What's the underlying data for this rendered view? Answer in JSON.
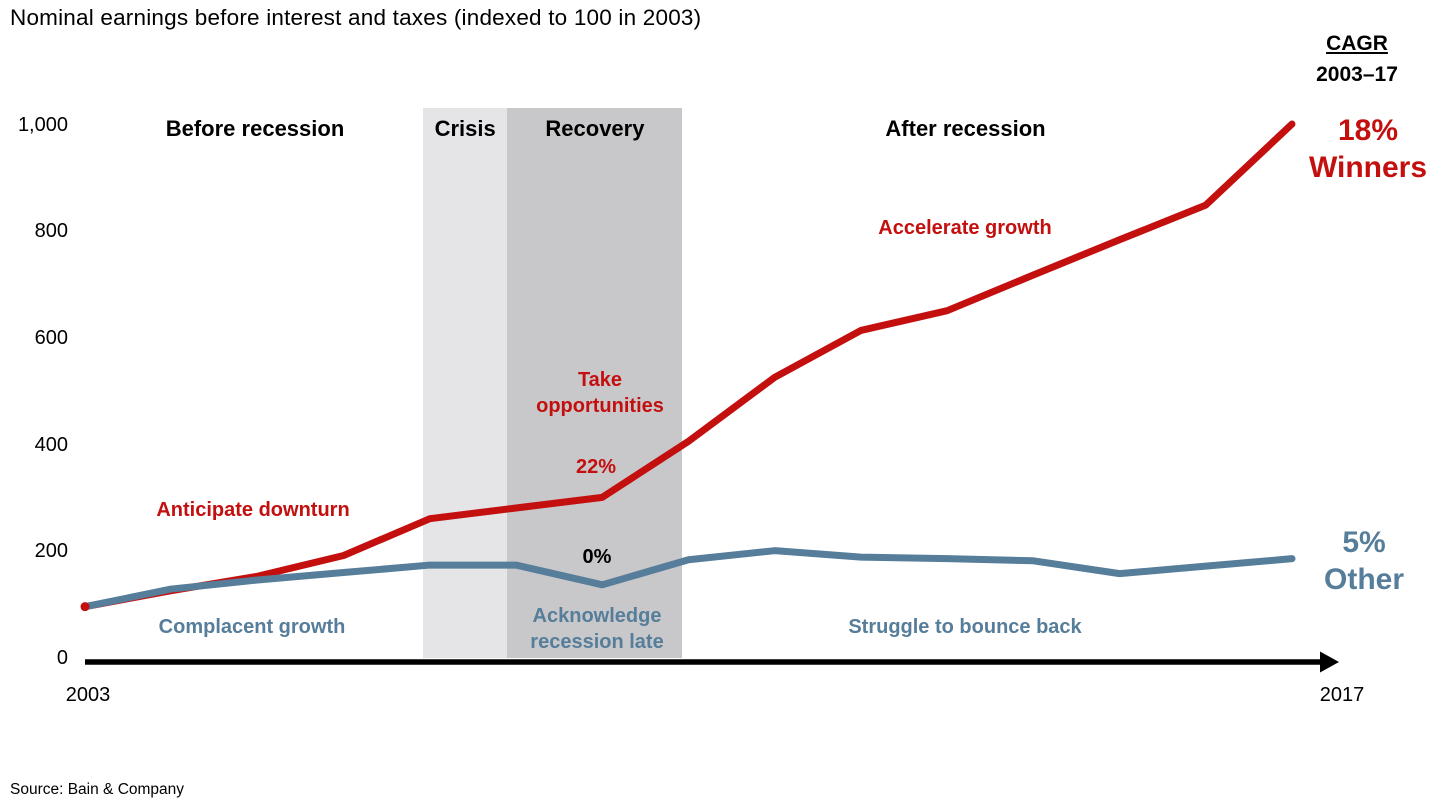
{
  "title": "Nominal earnings before interest and taxes (indexed to 100 in 2003)",
  "source": "Source: Bain & Company",
  "cagr_header": {
    "heading": "CAGR",
    "subheading": "2003–17"
  },
  "series_callouts": {
    "winners": "18%\nWinners",
    "other": "5%\nOther"
  },
  "phases": {
    "before": "Before recession",
    "after": "After recession"
  },
  "axis": {
    "x_start_label": "2003",
    "x_end_label": "2017",
    "y_tick_labels": [
      "1,000",
      "800",
      "600",
      "400",
      "200",
      "0"
    ]
  },
  "chart_data": {
    "type": "line",
    "title": "Nominal earnings before interest and taxes (indexed to 100 in 2003)",
    "x": [
      2003,
      2004,
      2005,
      2006,
      2007,
      2008,
      2009,
      2010,
      2011,
      2012,
      2013,
      2014,
      2015,
      2016,
      2017
    ],
    "series": [
      {
        "name": "Winners",
        "cagr_2003_17": "18%",
        "color": "#c40f0f",
        "values": [
          100,
          130,
          157,
          196,
          265,
          285,
          305,
          410,
          530,
          618,
          655,
          722,
          788,
          853,
          1005
        ]
      },
      {
        "name": "Other",
        "cagr_2003_17": "5%",
        "color": "#567d99",
        "values": [
          100,
          133,
          150,
          164,
          178,
          178,
          141,
          188,
          205,
          193,
          190,
          186,
          162,
          176,
          190
        ]
      }
    ],
    "ylim": [
      0,
      1000
    ],
    "yticks": [
      1000,
      800,
      600,
      400,
      200,
      0
    ],
    "grid": false,
    "legend_position": "right-of-line-ends",
    "bands": [
      {
        "label": "Crisis",
        "x_from": 2006.92,
        "x_to": 2007.9,
        "color": "#e5e5e7"
      },
      {
        "label": "Recovery",
        "x_from": 2007.9,
        "x_to": 2009.93,
        "color": "#c8c8ca"
      }
    ],
    "annotations": [
      {
        "text": "Anticipate downturn",
        "color": "#c40f0f",
        "series": "Winners"
      },
      {
        "text": "Complacent growth",
        "color": "#567d99",
        "series": "Other"
      },
      {
        "text": "Take\nopportunities",
        "color": "#c40f0f",
        "series": "Winners"
      },
      {
        "text": "22%",
        "color": "#c40f0f",
        "series": "Winners"
      },
      {
        "text": "0%",
        "color": "#000000",
        "series": "Other"
      },
      {
        "text": "Acknowledge\nrecession late",
        "color": "#567d99",
        "series": "Other"
      },
      {
        "text": "Accelerate growth",
        "color": "#c40f0f",
        "series": "Winners"
      },
      {
        "text": "Struggle to bounce back",
        "color": "#567d99",
        "series": "Other"
      }
    ]
  }
}
